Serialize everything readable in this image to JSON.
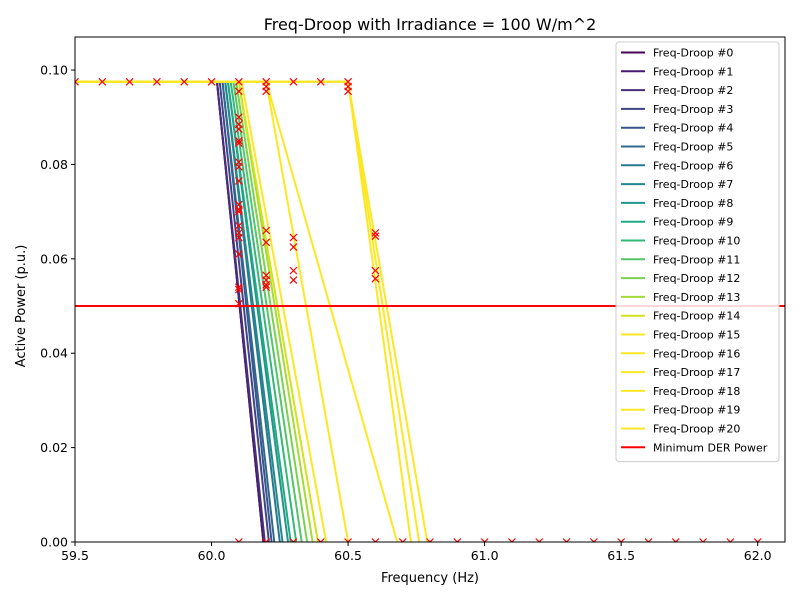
{
  "chart_data": {
    "type": "line",
    "title": "Freq-Droop with Irradiance = 100 W/m^2",
    "xlabel": "Frequency (Hz)",
    "ylabel": "Active Power (p.u.)",
    "xlim": [
      59.5,
      62.1
    ],
    "ylim": [
      0.0,
      0.107
    ],
    "xticks": [
      59.5,
      60.0,
      60.5,
      61.0,
      61.5,
      62.0
    ],
    "xtick_labels": [
      "59.5",
      "60.0",
      "60.5",
      "61.0",
      "61.5",
      "62.0"
    ],
    "yticks": [
      0.0,
      0.02,
      0.04,
      0.06,
      0.08,
      0.1
    ],
    "ytick_labels": [
      "0.00",
      "0.02",
      "0.04",
      "0.06",
      "0.08",
      "0.10"
    ],
    "grid": false,
    "legend_position": "top-right",
    "series": [
      {
        "name": "Freq-Droop #0",
        "color": "#440154",
        "x": [
          59.5,
          60.02,
          60.19
        ],
        "y": [
          0.0975,
          0.0975,
          0.0
        ]
      },
      {
        "name": "Freq-Droop #1",
        "color": "#481a6c",
        "x": [
          59.5,
          60.02,
          60.19
        ],
        "y": [
          0.0975,
          0.0975,
          0.0
        ]
      },
      {
        "name": "Freq-Droop #2",
        "color": "#472f7d",
        "x": [
          59.5,
          60.02,
          60.195
        ],
        "y": [
          0.0975,
          0.0975,
          0.0
        ]
      },
      {
        "name": "Freq-Droop #3",
        "color": "#414487",
        "x": [
          59.5,
          60.03,
          60.21
        ],
        "y": [
          0.0975,
          0.0975,
          0.0
        ]
      },
      {
        "name": "Freq-Droop #4",
        "color": "#39568c",
        "x": [
          59.5,
          60.04,
          60.22
        ],
        "y": [
          0.0975,
          0.0975,
          0.0
        ]
      },
      {
        "name": "Freq-Droop #5",
        "color": "#31688e",
        "x": [
          59.5,
          60.04,
          60.23
        ],
        "y": [
          0.0975,
          0.0975,
          0.0
        ]
      },
      {
        "name": "Freq-Droop #6",
        "color": "#2a788e",
        "x": [
          59.5,
          60.05,
          60.25
        ],
        "y": [
          0.0975,
          0.0975,
          0.0
        ]
      },
      {
        "name": "Freq-Droop #7",
        "color": "#23888e",
        "x": [
          59.5,
          60.05,
          60.26
        ],
        "y": [
          0.0975,
          0.0975,
          0.0
        ]
      },
      {
        "name": "Freq-Droop #8",
        "color": "#1f988b",
        "x": [
          59.5,
          60.06,
          60.28
        ],
        "y": [
          0.0975,
          0.0975,
          0.0
        ]
      },
      {
        "name": "Freq-Droop #9",
        "color": "#22a884",
        "x": [
          59.5,
          60.06,
          60.29
        ],
        "y": [
          0.0975,
          0.0975,
          0.0
        ]
      },
      {
        "name": "Freq-Droop #10",
        "color": "#35b779",
        "x": [
          59.5,
          60.07,
          60.31
        ],
        "y": [
          0.0975,
          0.0975,
          0.0
        ]
      },
      {
        "name": "Freq-Droop #11",
        "color": "#54c568",
        "x": [
          59.5,
          60.08,
          60.33
        ],
        "y": [
          0.0975,
          0.0975,
          0.0
        ]
      },
      {
        "name": "Freq-Droop #12",
        "color": "#7ad151",
        "x": [
          59.5,
          60.09,
          60.35
        ],
        "y": [
          0.0975,
          0.0975,
          0.0
        ]
      },
      {
        "name": "Freq-Droop #13",
        "color": "#a5db36",
        "x": [
          59.5,
          60.1,
          60.37
        ],
        "y": [
          0.0975,
          0.0975,
          0.0
        ]
      },
      {
        "name": "Freq-Droop #14",
        "color": "#d2e21b",
        "x": [
          59.5,
          60.1,
          60.39
        ],
        "y": [
          0.0975,
          0.0975,
          0.0
        ]
      },
      {
        "name": "Freq-Droop #15",
        "color": "#fde725",
        "x": [
          59.5,
          60.11,
          60.42
        ],
        "y": [
          0.0975,
          0.0975,
          0.0
        ]
      },
      {
        "name": "Freq-Droop #16",
        "color": "#fde725",
        "x": [
          59.5,
          60.2,
          60.5
        ],
        "y": [
          0.0975,
          0.0975,
          0.0
        ]
      },
      {
        "name": "Freq-Droop #17",
        "color": "#fde725",
        "x": [
          59.5,
          60.2,
          60.68
        ],
        "y": [
          0.0975,
          0.0975,
          0.0
        ]
      },
      {
        "name": "Freq-Droop #18",
        "color": "#fde725",
        "x": [
          59.5,
          60.5,
          60.73
        ],
        "y": [
          0.0975,
          0.0975,
          0.0
        ]
      },
      {
        "name": "Freq-Droop #19",
        "color": "#fde725",
        "x": [
          59.5,
          60.5,
          60.76
        ],
        "y": [
          0.0975,
          0.0975,
          0.0
        ]
      },
      {
        "name": "Freq-Droop #20",
        "color": "#fde725",
        "x": [
          59.5,
          60.5,
          60.79
        ],
        "y": [
          0.0975,
          0.0975,
          0.0
        ]
      }
    ],
    "hlines": [
      {
        "name": "Minimum DER Power",
        "color": "#ff0000",
        "y": 0.05
      }
    ],
    "markers": {
      "symbol": "x",
      "color": "#ff0000",
      "points": [
        [
          59.5,
          0.0975
        ],
        [
          59.6,
          0.0975
        ],
        [
          59.7,
          0.0975
        ],
        [
          59.8,
          0.0975
        ],
        [
          59.9,
          0.0975
        ],
        [
          60.0,
          0.0975
        ],
        [
          60.1,
          0.0975
        ],
        [
          60.2,
          0.0975
        ],
        [
          60.3,
          0.0975
        ],
        [
          60.4,
          0.0975
        ],
        [
          60.5,
          0.0975
        ],
        [
          60.1,
          0.0955
        ],
        [
          60.1,
          0.09
        ],
        [
          60.1,
          0.0885
        ],
        [
          60.1,
          0.0875
        ],
        [
          60.1,
          0.085
        ],
        [
          60.1,
          0.0845
        ],
        [
          60.1,
          0.0805
        ],
        [
          60.1,
          0.0795
        ],
        [
          60.1,
          0.0765
        ],
        [
          60.1,
          0.0715
        ],
        [
          60.1,
          0.0705
        ],
        [
          60.1,
          0.07
        ],
        [
          60.1,
          0.067
        ],
        [
          60.1,
          0.0655
        ],
        [
          60.1,
          0.0645
        ],
        [
          60.1,
          0.061
        ],
        [
          60.1,
          0.054
        ],
        [
          60.1,
          0.0535
        ],
        [
          60.1,
          0.0505
        ],
        [
          60.2,
          0.0965
        ],
        [
          60.2,
          0.0955
        ],
        [
          60.2,
          0.066
        ],
        [
          60.2,
          0.0635
        ],
        [
          60.2,
          0.0565
        ],
        [
          60.2,
          0.0555
        ],
        [
          60.2,
          0.0545
        ],
        [
          60.2,
          0.054
        ],
        [
          60.3,
          0.0645
        ],
        [
          60.3,
          0.0625
        ],
        [
          60.3,
          0.0575
        ],
        [
          60.3,
          0.0555
        ],
        [
          60.5,
          0.0965
        ],
        [
          60.5,
          0.0955
        ],
        [
          60.6,
          0.0655
        ],
        [
          60.6,
          0.0648
        ],
        [
          60.6,
          0.0575
        ],
        [
          60.6,
          0.0558
        ],
        [
          60.1,
          0.0
        ],
        [
          60.2,
          0.0
        ],
        [
          60.3,
          0.0
        ],
        [
          60.4,
          0.0
        ],
        [
          60.5,
          0.0
        ],
        [
          60.6,
          0.0
        ],
        [
          60.7,
          0.0
        ],
        [
          60.8,
          0.0
        ],
        [
          60.9,
          0.0
        ],
        [
          61.0,
          0.0
        ],
        [
          61.1,
          0.0
        ],
        [
          61.2,
          0.0
        ],
        [
          61.3,
          0.0
        ],
        [
          61.4,
          0.0
        ],
        [
          61.5,
          0.0
        ],
        [
          61.6,
          0.0
        ],
        [
          61.7,
          0.0
        ],
        [
          61.8,
          0.0
        ],
        [
          61.9,
          0.0
        ],
        [
          62.0,
          0.0
        ]
      ]
    }
  }
}
